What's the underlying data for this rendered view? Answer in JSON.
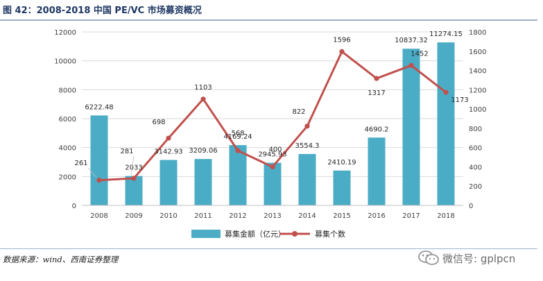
{
  "header": {
    "title": "图 42：2008-2018 中国 PE/VC 市场募资概况"
  },
  "footer": {
    "source": "数据来源：wind、西南证券整理"
  },
  "watermark": {
    "text": "微信号: gplpcn",
    "icon": "wechat-icon"
  },
  "colors": {
    "bar": "#4bacc6",
    "line": "#c0504d",
    "grid": "#d9d9d9",
    "axis_text": "#404040"
  },
  "chart_data": {
    "type": "bar",
    "title": "",
    "xlabel": "",
    "ylabel": "",
    "categories": [
      "2008",
      "2009",
      "2010",
      "2011",
      "2012",
      "2013",
      "2014",
      "2015",
      "2016",
      "2017",
      "2018"
    ],
    "series": [
      {
        "name": "募集金额（亿元）",
        "type": "bar",
        "axis": "left",
        "values": [
          6222.48,
          2033,
          3142.93,
          3209.06,
          4169.24,
          2945.93,
          3554.3,
          2410.19,
          4690.2,
          10837.32,
          11274.15
        ],
        "labels": [
          "6222.48",
          "2033",
          "3142.93",
          "3209.06",
          "4169.24",
          "2945.93",
          "3554.3",
          "2410.19",
          "4690.2",
          "10837.32",
          "11274.15"
        ]
      },
      {
        "name": "募集个数",
        "type": "line",
        "axis": "right",
        "values": [
          261,
          281,
          698,
          1103,
          568,
          400,
          822,
          1596,
          1317,
          1452,
          1173
        ],
        "labels": [
          "261",
          "281",
          "698",
          "1103",
          "568",
          "400",
          "822",
          "1596",
          "1317",
          "1452",
          "1173"
        ]
      }
    ],
    "ylim_left": [
      0,
      12000
    ],
    "yticks_left": [
      "0",
      "2000",
      "4000",
      "6000",
      "8000",
      "10000",
      "12000"
    ],
    "ylim_right": [
      0,
      1800
    ],
    "yticks_right": [
      "0",
      "200",
      "400",
      "600",
      "800",
      "1000",
      "1200",
      "1400",
      "1600",
      "1800"
    ],
    "grid": true,
    "legend_position": "bottom"
  }
}
